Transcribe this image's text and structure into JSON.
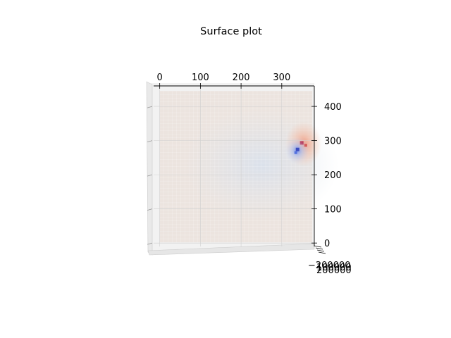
{
  "chart_data": {
    "type": "surface",
    "title": "Surface plot",
    "view": "top-down",
    "colormap": "coolwarm",
    "x_ticks": [
      "0",
      "100",
      "200",
      "300"
    ],
    "y_ticks": [
      "0",
      "100",
      "200",
      "300",
      "400"
    ],
    "z_ticks": [
      "−200000",
      "100000",
      "200000"
    ],
    "xlim": [
      -15,
      380
    ],
    "ylim": [
      -10,
      460
    ],
    "grid": true,
    "surface_features": [
      {
        "kind": "peak",
        "x": 350,
        "y": 290,
        "sign": "positive"
      },
      {
        "kind": "trough",
        "x": 338,
        "y": 275,
        "sign": "negative"
      }
    ],
    "colors": {
      "pane": "#f2f2f2",
      "baseline_surface": "#ece4df",
      "peak": "#b40426",
      "trough": "#3b4cc0"
    }
  }
}
